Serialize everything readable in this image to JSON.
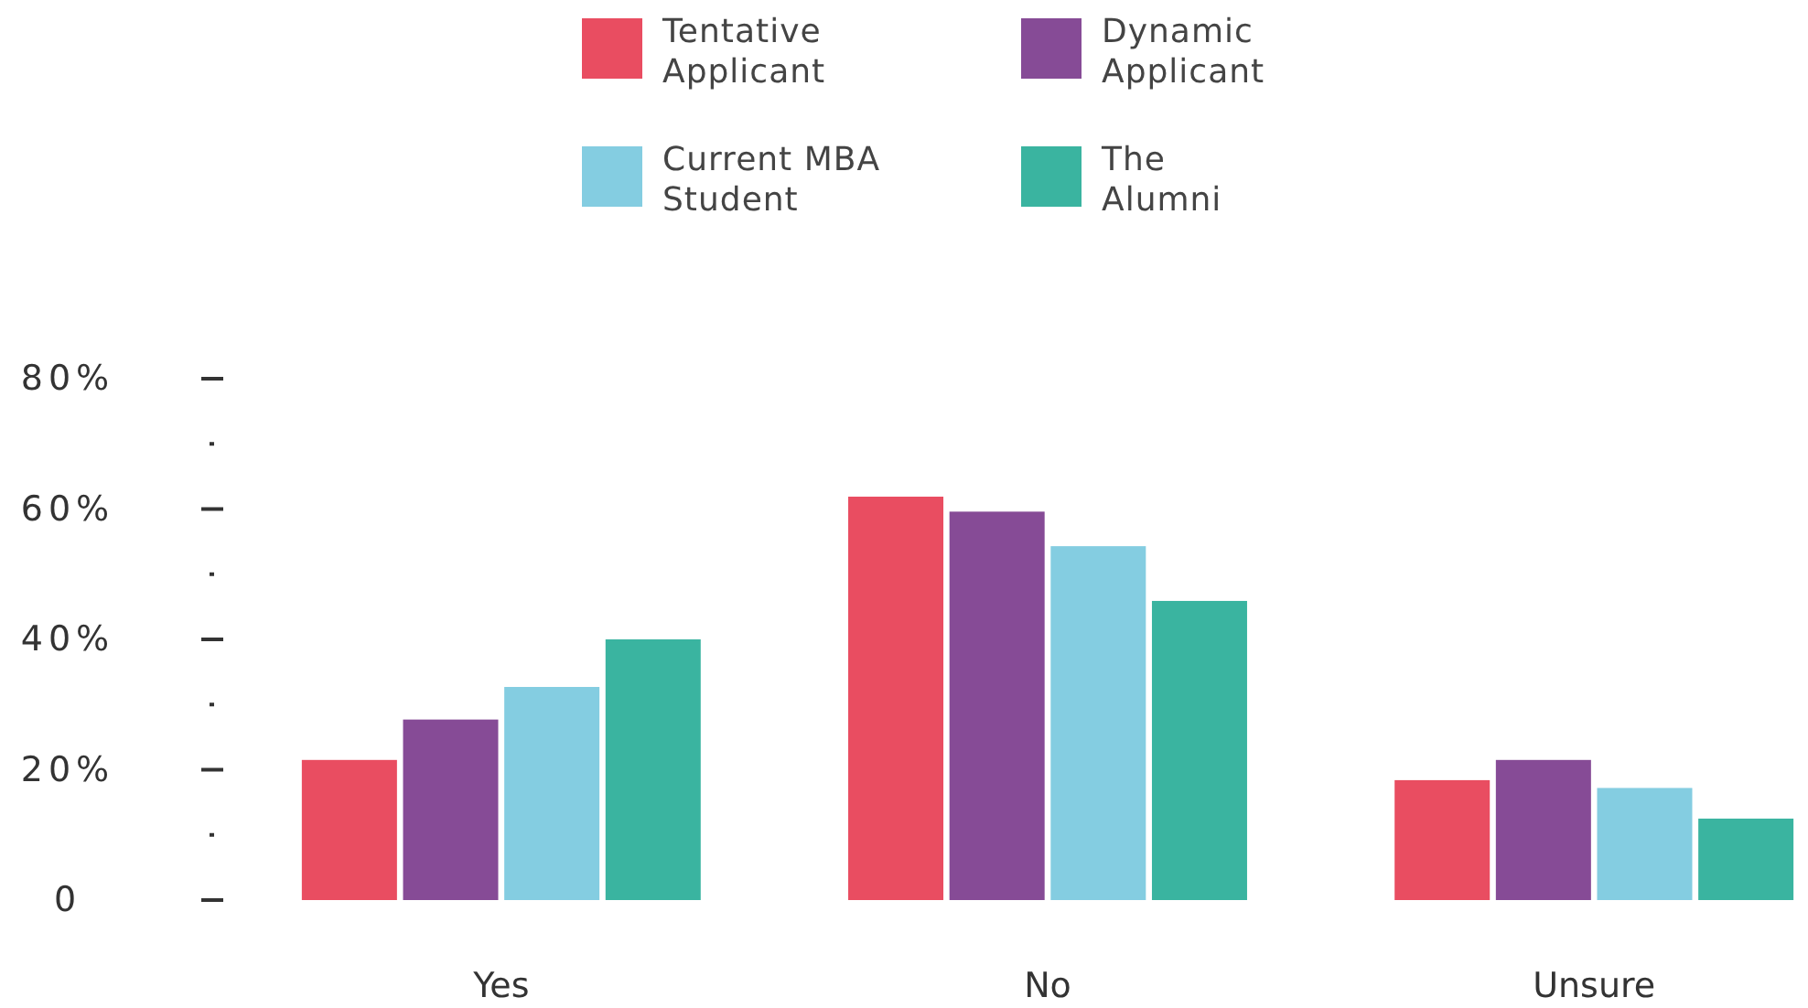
{
  "chart_data": {
    "type": "bar",
    "categories": [
      "Yes",
      "No",
      "Unsure"
    ],
    "series": [
      {
        "name": "Tentative Applicant",
        "color": "#e94d61",
        "values": [
          21.5,
          61.9,
          18.4
        ]
      },
      {
        "name": "Dynamic Applicant",
        "color": "#864b96",
        "values": [
          27.7,
          59.6,
          21.5
        ]
      },
      {
        "name": "Current MBA Student",
        "color": "#84cde1",
        "values": [
          32.7,
          54.3,
          17.2
        ]
      },
      {
        "name": "The Alumni",
        "color": "#3ab4a0",
        "values": [
          40,
          45.9,
          12.5
        ]
      }
    ],
    "ylim": [
      0,
      80
    ],
    "yticks": [
      0,
      {
        "value": 10,
        "label": null
      },
      {
        "value": 20,
        "label": "20%"
      },
      {
        "value": 30,
        "label": null
      },
      {
        "value": 40,
        "label": "40%"
      },
      {
        "value": 50,
        "label": null
      },
      {
        "value": 60,
        "label": "60%"
      },
      {
        "value": 70,
        "label": null
      },
      {
        "value": 80,
        "label": "80%"
      }
    ],
    "grid": false,
    "legend": "top"
  }
}
